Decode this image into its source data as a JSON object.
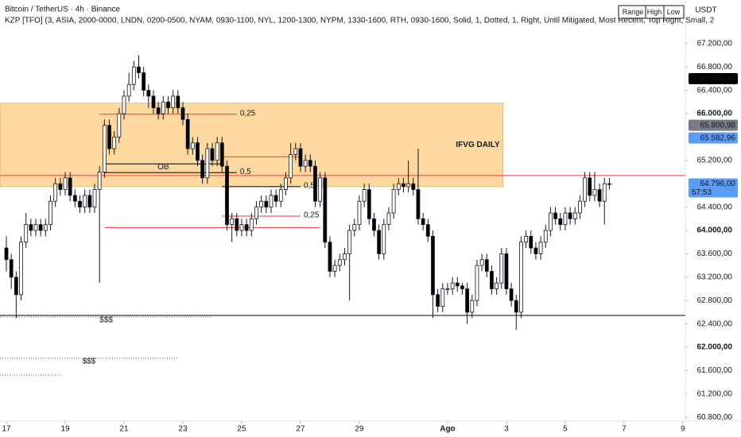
{
  "chart_data": {
    "type": "candlestick",
    "title": "Bitcoin / TetherUS · 4h · Binance",
    "subtitle": "KZP [TFO] (3, ASIA, 2000-0000, LNDN, 0200-0500, NYAM, 0930-1100, NYL, 1200-1300, NYPM, 1330-1600, RTH, 0930-1600, Solid, 1, Dotted, 1, Right, Until Mitigated, Most Recent, Top Right, Small, 2",
    "buttons": [
      "Range",
      "High",
      "Low"
    ],
    "currency": "USDT",
    "up_color": "#ffffff",
    "down_color": "#000000",
    "xlim": [
      -1.3,
      138.5
    ],
    "ylim": [
      60735,
      67946
    ],
    "xticks": [
      {
        "value": 0,
        "label": "17"
      },
      {
        "value": 12,
        "label": "19"
      },
      {
        "value": 24,
        "label": "21"
      },
      {
        "value": 36,
        "label": "23"
      },
      {
        "value": 48,
        "label": "25"
      },
      {
        "value": 60,
        "label": "27"
      },
      {
        "value": 72,
        "label": "29"
      },
      {
        "value": 90,
        "label": "Ago"
      },
      {
        "value": 102,
        "label": "3"
      },
      {
        "value": 114,
        "label": "5"
      },
      {
        "value": 126,
        "label": "7"
      },
      {
        "value": 138,
        "label": "9"
      }
    ],
    "yticks": [
      {
        "value": 60800,
        "label": "60.800,00"
      },
      {
        "value": 61200,
        "label": "61.200,00"
      },
      {
        "value": 61600,
        "label": "61.600,00"
      },
      {
        "value": 62000,
        "label": "62.000,00"
      },
      {
        "value": 62400,
        "label": "62.400,00"
      },
      {
        "value": 62800,
        "label": "62.800,00"
      },
      {
        "value": 63200,
        "label": "63.200,00"
      },
      {
        "value": 63600,
        "label": "63.600,00"
      },
      {
        "value": 64000,
        "label": "64.000,00"
      },
      {
        "value": 64400,
        "label": "64.400,00"
      },
      {
        "value": 65200,
        "label": "65.200,00"
      },
      {
        "value": 66000,
        "label": "66.000,00"
      },
      {
        "value": 66400,
        "label": "66.400,00"
      },
      {
        "value": 66800,
        "label": "66.800,00"
      },
      {
        "value": 67200,
        "label": "67.200,00"
      }
    ],
    "open": [
      63700,
      63500,
      63200,
      62900,
      63800,
      64100,
      64000,
      64100,
      64000,
      64100,
      64500,
      64800,
      64700,
      64900,
      64600,
      64500,
      64400,
      64600,
      64400,
      64700,
      65000,
      65800,
      65400,
      65600,
      66000,
      66300,
      66500,
      66800,
      66700,
      66400,
      66300,
      66100,
      66000,
      66200,
      66100,
      66300,
      66100,
      65900,
      65400,
      65500,
      65200,
      64900,
      65400,
      65200,
      65500,
      65100,
      64100,
      64200,
      64000,
      64100,
      64000,
      64200,
      64400,
      64500,
      64400,
      64600,
      64500,
      64700,
      64900,
      65300,
      65400,
      65100,
      65200,
      65100,
      64500,
      64900,
      63800,
      63300,
      63400,
      63500,
      63600,
      64000,
      64100,
      64500,
      64700,
      64200,
      64000,
      63600,
      64100,
      64300,
      64700,
      64800,
      64750,
      64800,
      64700,
      64200,
      64100,
      63900,
      62900,
      62700,
      63000,
      63000,
      63100,
      63050,
      63000,
      62600,
      62800,
      63400,
      63500,
      63300,
      63000,
      63100,
      63600,
      63000,
      62800,
      62600,
      63800,
      63900,
      63700,
      63600,
      63800,
      64000,
      64300,
      64200,
      64100,
      64300,
      64200,
      64300,
      64500,
      64900,
      64600,
      64700,
      64500,
      64800
    ],
    "high": [
      63900,
      63600,
      63300,
      63900,
      64300,
      64200,
      64200,
      64200,
      64200,
      64600,
      64900,
      64900,
      65000,
      65000,
      64700,
      64600,
      64700,
      64700,
      64800,
      65100,
      65900,
      65900,
      65700,
      66100,
      66400,
      66700,
      66900,
      67000,
      66800,
      66500,
      66400,
      66200,
      66300,
      66300,
      66400,
      66400,
      66200,
      66000,
      65600,
      65600,
      65300,
      65500,
      65500,
      65600,
      65600,
      65200,
      64300,
      64300,
      64200,
      64200,
      64300,
      64500,
      64600,
      64600,
      64700,
      64700,
      64800,
      65000,
      65500,
      65500,
      65500,
      65300,
      65300,
      65200,
      65000,
      65000,
      63900,
      63500,
      63600,
      63700,
      64100,
      64200,
      64600,
      64800,
      64800,
      64300,
      64100,
      64200,
      64400,
      64800,
      64900,
      64900,
      65200,
      64900,
      65400,
      64300,
      64200,
      64000,
      63000,
      63100,
      63100,
      63200,
      63200,
      63100,
      63100,
      62900,
      63500,
      63600,
      63600,
      63400,
      63200,
      63700,
      63700,
      63100,
      62900,
      63900,
      64000,
      64000,
      63800,
      63900,
      64100,
      64400,
      64400,
      64300,
      64400,
      64400,
      64400,
      64600,
      65000,
      65000,
      65000,
      64800,
      64900,
      64900
    ],
    "low": [
      63300,
      63000,
      62500,
      62800,
      63700,
      63900,
      63900,
      63900,
      63900,
      64000,
      64400,
      64600,
      64600,
      64500,
      64400,
      64300,
      64300,
      64300,
      64300,
      63100,
      64900,
      65300,
      65300,
      65500,
      65900,
      66200,
      66400,
      66600,
      66300,
      66100,
      66000,
      65900,
      65900,
      66000,
      66000,
      66000,
      65800,
      65300,
      65300,
      65100,
      64800,
      64800,
      65100,
      65100,
      65000,
      64000,
      63800,
      63900,
      63900,
      63900,
      63900,
      64100,
      64300,
      64300,
      64300,
      64400,
      64400,
      64600,
      64800,
      65200,
      65000,
      65000,
      65000,
      64400,
      64400,
      63700,
      63200,
      63200,
      63300,
      63400,
      62800,
      63900,
      64000,
      64400,
      64100,
      63900,
      63500,
      63500,
      64000,
      64200,
      64600,
      64650,
      64650,
      64600,
      64100,
      64000,
      63800,
      62500,
      62600,
      62600,
      62900,
      62900,
      62950,
      62900,
      62400,
      62500,
      62700,
      63300,
      63200,
      62900,
      62900,
      63000,
      62900,
      62700,
      62300,
      62500,
      63700,
      63600,
      63500,
      63500,
      63700,
      63900,
      64100,
      64000,
      64000,
      64100,
      64100,
      64200,
      64400,
      64500,
      64500,
      64400,
      64100,
      64700
    ],
    "close": [
      63500,
      63200,
      62900,
      63800,
      64100,
      64000,
      64100,
      64000,
      64100,
      64500,
      64800,
      64700,
      64900,
      64600,
      64500,
      64400,
      64600,
      64400,
      64700,
      65000,
      65800,
      65400,
      65600,
      66000,
      66300,
      66500,
      66800,
      66700,
      66400,
      66300,
      66100,
      66000,
      66200,
      66100,
      66300,
      66100,
      65900,
      65400,
      65500,
      65200,
      64900,
      65400,
      65200,
      65500,
      65100,
      64100,
      64200,
      64000,
      64100,
      64000,
      64200,
      64400,
      64500,
      64400,
      64600,
      64500,
      64700,
      64900,
      65300,
      65400,
      65100,
      65200,
      65100,
      64500,
      64900,
      63800,
      63300,
      63400,
      63500,
      63600,
      64000,
      64100,
      64500,
      64700,
      64200,
      64000,
      63600,
      64100,
      64300,
      64700,
      64800,
      64750,
      64800,
      64700,
      64200,
      64100,
      63900,
      62900,
      62700,
      63000,
      63000,
      63100,
      63050,
      63000,
      62600,
      62800,
      63400,
      63500,
      63300,
      63000,
      63100,
      63600,
      63000,
      62800,
      62600,
      63800,
      63900,
      63700,
      63600,
      63800,
      64000,
      64300,
      64200,
      64100,
      64300,
      64200,
      64300,
      64500,
      64900,
      64600,
      64700,
      64500,
      64800,
      64796
    ],
    "zone": {
      "label": "IFVG DAILY",
      "top": 66180,
      "bottom": 64750,
      "from": -2,
      "to": 101.3,
      "color": "#fdd9a0"
    },
    "levels": [
      {
        "value": 65990,
        "from": 19,
        "to": 47,
        "color": "#f23645",
        "style": "solid",
        "label": "0,25",
        "label_pos": "end"
      },
      {
        "value": 65140,
        "from": 20,
        "to": 44,
        "color": "#000000",
        "style": "solid",
        "label": "OB",
        "label_pos": "middle"
      },
      {
        "value": 64990,
        "from": 20,
        "to": 47,
        "color": "#000000",
        "style": "solid",
        "label": "0,5",
        "label_pos": "end"
      },
      {
        "value": 64940,
        "from": -2,
        "to": 139,
        "color": "#f23645",
        "style": "solid"
      },
      {
        "value": 65260,
        "from": 44,
        "to": 60,
        "color": "#f23645",
        "style": "solid"
      },
      {
        "value": 64750,
        "from": 44,
        "to": 60,
        "color": "#000000",
        "style": "solid",
        "label": "0,5",
        "label_pos": "end"
      },
      {
        "value": 64245,
        "from": 44,
        "to": 60,
        "color": "#f23645",
        "style": "solid",
        "label": "0,25",
        "label_pos": "end"
      },
      {
        "value": 64050,
        "from": 20,
        "to": 64,
        "color": "#f23645",
        "style": "solid"
      },
      {
        "value": 62544,
        "from": -2,
        "to": 139,
        "color": "#000000",
        "style": "solid"
      },
      {
        "value": 62517,
        "from": -2,
        "to": 42,
        "color": "#555555",
        "style": "dotted",
        "label": "$$$",
        "label_pos": "middle"
      },
      {
        "value": 61810,
        "from": -2,
        "to": 35,
        "color": "#555555",
        "style": "dotted",
        "label": "$$$",
        "label_pos": "middle"
      },
      {
        "value": 61524,
        "from": -2,
        "to": 11,
        "color": "#555555",
        "style": "dotted"
      }
    ],
    "price_tags": [
      {
        "value": 66599.48,
        "label": "66.599,48",
        "color": "#000000"
      },
      {
        "value": 65800.98,
        "label": "65.800,98",
        "color": "#787b86"
      },
      {
        "value": 65582.96,
        "label": "65.582,96",
        "color": "#5b9cf6"
      },
      {
        "value": 64796,
        "label": "64.796,00",
        "color": "#5b9cf6",
        "countdown": "57:53"
      }
    ]
  }
}
